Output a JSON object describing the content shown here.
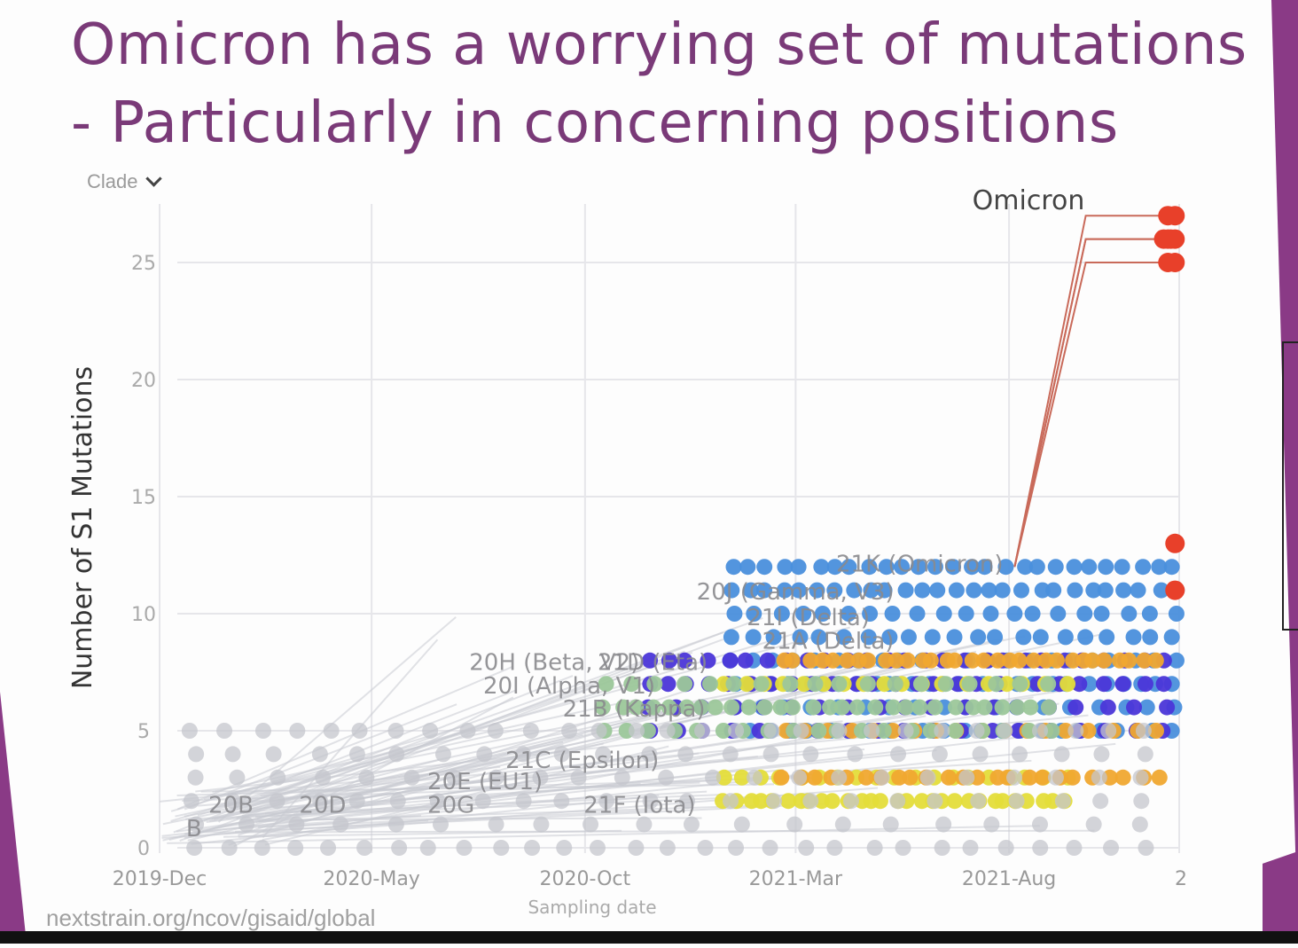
{
  "slide": {
    "title_line1": "Omicron has a worrying set of mutations",
    "title_line2": "- Particularly in concerning positions",
    "clade_control": "Clade",
    "source": "nextstrain.org/ncov/gisaid/global"
  },
  "colors": {
    "title": "#7a3a78",
    "omicron": "#e8402a",
    "delta_blue": "#4a8fdc",
    "violet": "#4b36d8",
    "yellow": "#e4dd3a",
    "orange": "#f0a830",
    "green": "#9cc79a",
    "teal": "#5ec0c8",
    "grey": "#c4c6cc"
  },
  "chart_data": {
    "type": "scatter",
    "title": "",
    "xlabel": "Sampling date",
    "ylabel": "Number of S1 Mutations",
    "x_ticks": [
      "2019-Dec",
      "2020-May",
      "2020-Oct",
      "2021-Mar",
      "2021-Aug",
      "2"
    ],
    "y_ticks": [
      0,
      5,
      10,
      15,
      20,
      25
    ],
    "ylim": [
      0,
      27.5
    ],
    "grid": true,
    "highlight_label": "Omicron",
    "clade_labels": [
      {
        "text": "20J (Gamma, V3)",
        "x": "2020-Dec-20",
        "y": 10.6
      },
      {
        "text": "21I (Delta)",
        "x": "2021-Jan-25",
        "y": 9.5
      },
      {
        "text": "21A (Delta)",
        "x": "2021-Feb-05",
        "y": 8.5
      },
      {
        "text": "21K (Omicron)",
        "x": "2021-Mar-30",
        "y": 11.8
      },
      {
        "text": "20H (Beta, V2)",
        "x": "2020-Jul-10",
        "y": 7.6
      },
      {
        "text": "21D (Eta)",
        "x": "2020-Oct-10",
        "y": 7.6
      },
      {
        "text": "20I (Alpha, V1)",
        "x": "2020-Jul-20",
        "y": 6.6
      },
      {
        "text": "21B (Kappa)",
        "x": "2020-Sep-15",
        "y": 5.6
      },
      {
        "text": "21C (Epsilon)",
        "x": "2020-Aug-05",
        "y": 3.4
      },
      {
        "text": "20E (EU1)",
        "x": "2020-Jun-10",
        "y": 2.5
      },
      {
        "text": "20B",
        "x": "2020-Jan-05",
        "y": 1.5
      },
      {
        "text": "20D",
        "x": "2020-Mar-10",
        "y": 1.5
      },
      {
        "text": "20G",
        "x": "2020-Jun-10",
        "y": 1.5
      },
      {
        "text": "21F (Iota)",
        "x": "2020-Sep-30",
        "y": 1.5
      },
      {
        "text": "B",
        "x": "2019-Dec-20",
        "y": 0.5
      }
    ],
    "omicron_points": [
      {
        "x": "2021-Nov-28",
        "y": 27
      },
      {
        "x": "2021-Nov-25",
        "y": 26
      },
      {
        "x": "2021-Nov-28",
        "y": 26
      },
      {
        "x": "2021-Nov-28",
        "y": 25
      },
      {
        "x": "2021-Nov-28",
        "y": 13
      },
      {
        "x": "2021-Nov-28",
        "y": 11
      }
    ],
    "series": [
      {
        "color": "delta_blue",
        "x_range": [
          "2021-Jan-15",
          "2021-Nov-28"
        ],
        "y_values": [
          5,
          6,
          7,
          8,
          9,
          10,
          11,
          12
        ]
      },
      {
        "color": "violet",
        "x_range": [
          "2020-Nov-15",
          "2021-Nov-20"
        ],
        "y_values": [
          5,
          6,
          7,
          8
        ]
      },
      {
        "color": "yellow",
        "x_range": [
          "2021-Jan-10",
          "2021-Sep-10"
        ],
        "y_values": [
          2,
          3,
          7
        ]
      },
      {
        "color": "orange",
        "x_range": [
          "2021-Feb-20",
          "2021-Nov-15"
        ],
        "y_values": [
          3,
          5,
          8
        ]
      },
      {
        "color": "green",
        "x_range": [
          "2020-Oct-15",
          "2021-Aug-30"
        ],
        "y_values": [
          5,
          6,
          7
        ]
      },
      {
        "color": "grey",
        "x_range": [
          "2019-Dec-25",
          "2021-Nov-05"
        ],
        "y_values": [
          0,
          1,
          2,
          3,
          4,
          5
        ]
      }
    ]
  }
}
